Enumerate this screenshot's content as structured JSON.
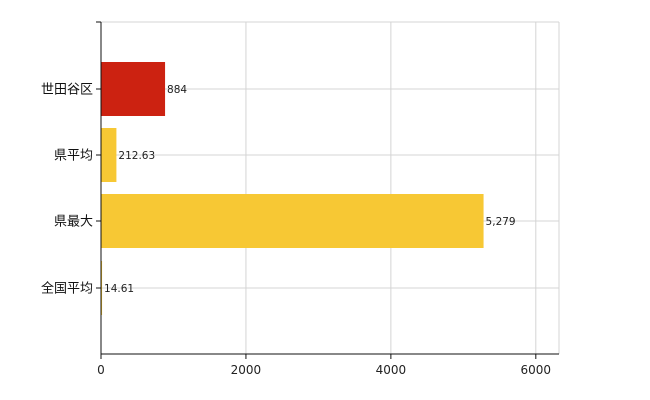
{
  "chart_data": {
    "type": "bar",
    "orientation": "horizontal",
    "categories": [
      "世田谷区",
      "県平均",
      "県最大",
      "全国平均"
    ],
    "values": [
      884,
      212.63,
      5279,
      14.61
    ],
    "value_labels": [
      "884",
      "212.63",
      "5,279",
      "14.61"
    ],
    "bar_colors": [
      "#cc2211",
      "#f7c834",
      "#f7c834",
      "#f7c834"
    ],
    "xticks": [
      0,
      2000,
      4000,
      6000
    ],
    "xtick_labels": [
      "0",
      "2000",
      "4000",
      "6000"
    ],
    "xlim": [
      0,
      6320
    ],
    "grid": true,
    "title": "",
    "xlabel": "",
    "ylabel": ""
  }
}
